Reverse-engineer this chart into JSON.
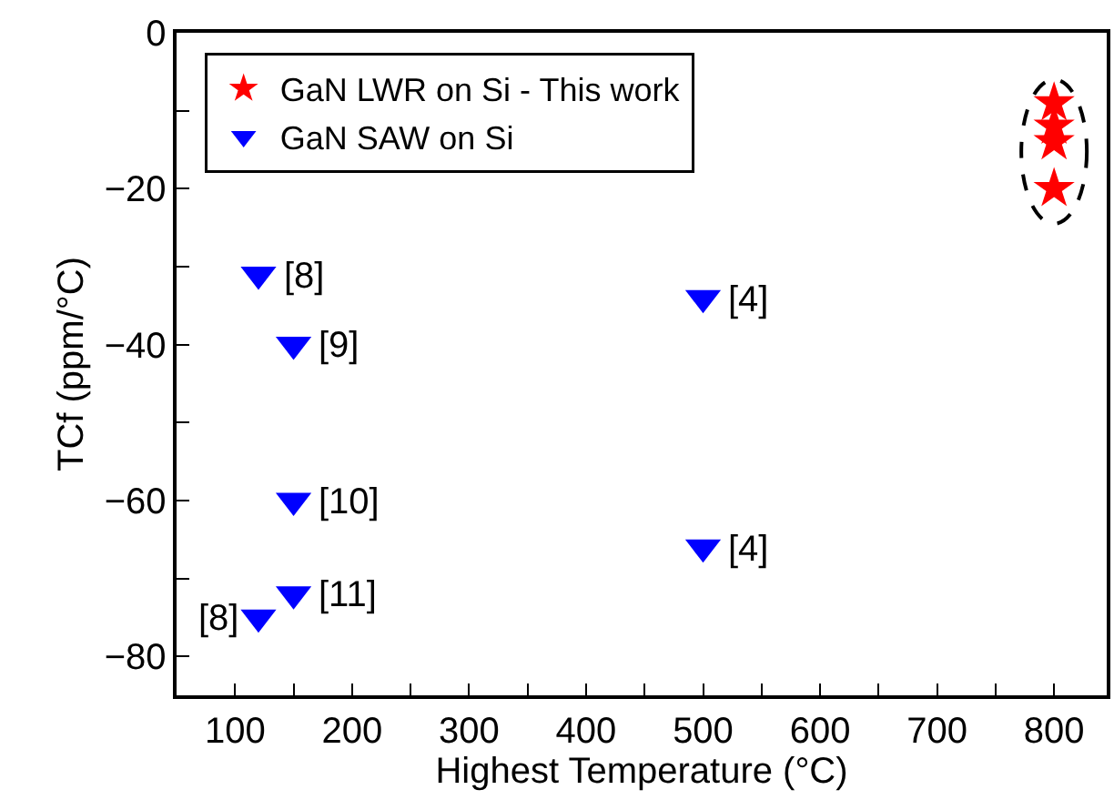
{
  "chart_data": {
    "type": "scatter",
    "xlabel": "Highest Temperature (°C)",
    "ylabel": "TCf (ppm/°C)",
    "series": [
      {
        "name": "GaN LWR on Si - This work",
        "color": "#ff0000",
        "marker": "star",
        "x": [
          800,
          800,
          800,
          800
        ],
        "values": [
          -9,
          -12,
          -14,
          -20
        ]
      },
      {
        "name": "GaN SAW on Si",
        "color": "#0000ff",
        "marker": "triangle",
        "x": [
          120,
          150,
          150,
          150,
          120,
          500,
          500
        ],
        "values": [
          -31,
          -40,
          -60,
          -72,
          -75,
          -34,
          -66
        ]
      }
    ],
    "xlim": [
      50,
      845
    ],
    "xticks": [
      100,
      {
        "value": 150,
        "label": null
      },
      200,
      {
        "value": 250,
        "label": null
      },
      300,
      {
        "value": 350,
        "label": null
      },
      400,
      {
        "value": 450,
        "label": null
      },
      500,
      {
        "value": 550,
        "label": null
      },
      600,
      {
        "value": 650,
        "label": null
      },
      700,
      {
        "value": 750,
        "label": null
      },
      800
    ],
    "ylim": [
      -85,
      0
    ],
    "yticks": [
      0,
      {
        "value": -10,
        "label": null
      },
      -20,
      {
        "value": -30,
        "label": null
      },
      -40,
      {
        "value": -50,
        "label": null
      },
      -60,
      {
        "value": -70,
        "label": null
      },
      -80
    ],
    "annotations": [
      {
        "text": "[8]",
        "x": 120,
        "y": -31
      },
      {
        "text": "[9]",
        "x": 150,
        "y": -40
      },
      {
        "text": "[10]",
        "x": 150,
        "y": -60
      },
      {
        "text": "[11]",
        "x": 150,
        "y": -72
      },
      {
        "text": "[8]",
        "x": 120,
        "y": -75
      },
      {
        "text": "[4]",
        "x": 500,
        "y": -34
      },
      {
        "text": "[4]",
        "x": 500,
        "y": -66
      }
    ],
    "legend": "top left"
  }
}
